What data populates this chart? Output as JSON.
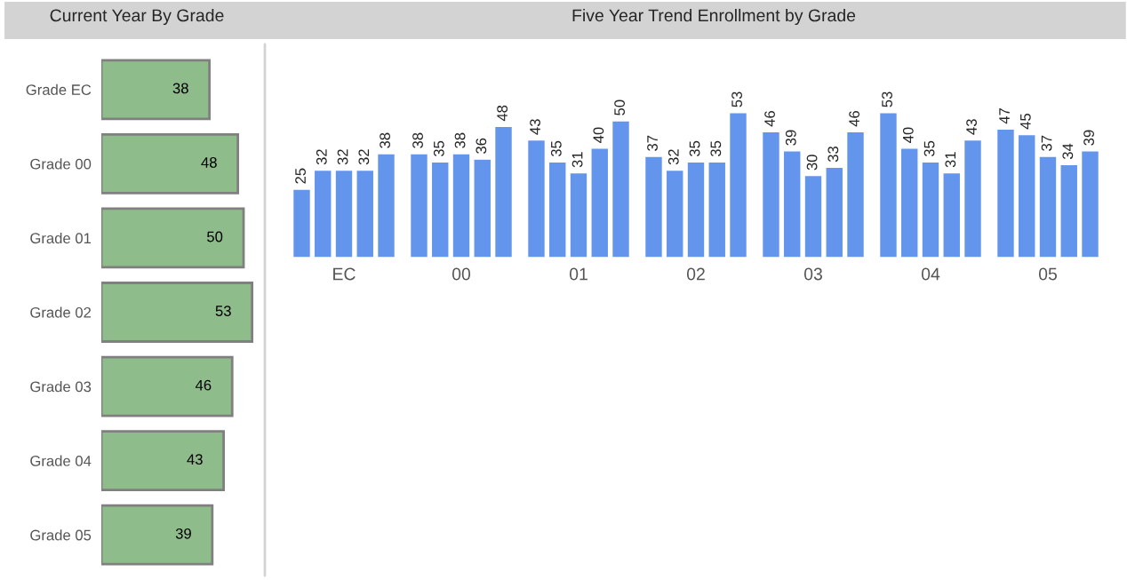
{
  "chart_data": [
    {
      "type": "bar",
      "orientation": "horizontal",
      "title": "Current Year By Grade",
      "categories": [
        "Grade EC",
        "Grade 00",
        "Grade 01",
        "Grade 02",
        "Grade 03",
        "Grade 04",
        "Grade 05"
      ],
      "values": [
        38,
        48,
        50,
        53,
        46,
        43,
        39
      ],
      "color": "#8fbc8b",
      "data_labels": true
    },
    {
      "type": "bar",
      "title": "Five Year Trend Enrollment by Grade",
      "categories": [
        "EC",
        "00",
        "01",
        "02",
        "03",
        "04",
        "05"
      ],
      "series": [
        {
          "color": "#6495ed",
          "values": [
            25,
            38,
            43,
            37,
            46,
            53,
            47
          ]
        },
        {
          "color": "#6495ed",
          "values": [
            32,
            35,
            35,
            32,
            39,
            40,
            45
          ]
        },
        {
          "color": "#6495ed",
          "values": [
            32,
            38,
            31,
            35,
            30,
            35,
            37
          ]
        },
        {
          "color": "#6495ed",
          "values": [
            32,
            36,
            40,
            35,
            33,
            31,
            34
          ]
        },
        {
          "color": "#6495ed",
          "values": [
            38,
            48,
            50,
            53,
            46,
            43,
            39
          ]
        }
      ],
      "data_labels": true
    }
  ]
}
